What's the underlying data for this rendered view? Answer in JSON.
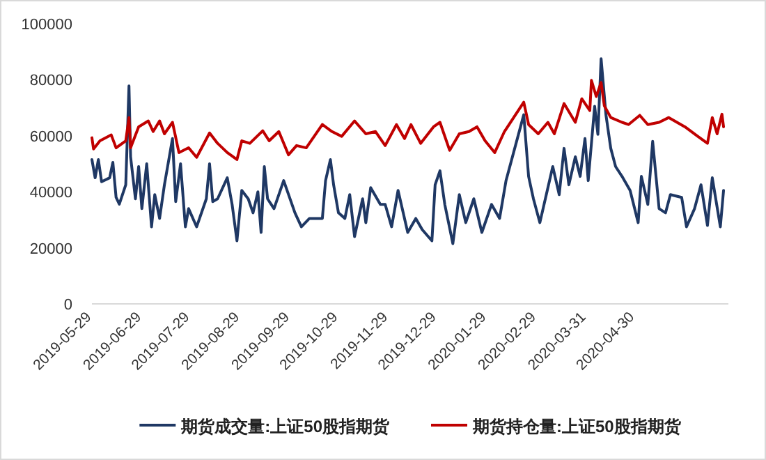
{
  "chart_data": {
    "type": "line",
    "legend": "bottom",
    "grid": false,
    "xlim": [
      "2019-05-29",
      "2020-06-27"
    ],
    "xticks": [
      "2019-05-29",
      "2019-06-29",
      "2019-07-29",
      "2019-08-29",
      "2019-09-29",
      "2019-10-29",
      "2019-11-29",
      "2019-12-29",
      "2020-01-29",
      "2020-02-29",
      "2020-03-31",
      "2020-04-30"
    ],
    "ylim": [
      0,
      100000
    ],
    "yticks": [
      0,
      20000,
      40000,
      60000,
      80000,
      100000
    ],
    "series": [
      {
        "name": "期货成交量:上证50股指期货",
        "color": "#1f3864",
        "x": [
          "2019-05-29",
          "2019-05-31",
          "2019-06-02",
          "2019-06-04",
          "2019-06-09",
          "2019-06-11",
          "2019-06-13",
          "2019-06-15",
          "2019-06-19",
          "2019-06-21",
          "2019-06-22",
          "2019-06-25",
          "2019-06-27",
          "2019-06-29",
          "2019-07-02",
          "2019-07-05",
          "2019-07-07",
          "2019-07-10",
          "2019-07-13",
          "2019-07-18",
          "2019-07-20",
          "2019-07-23",
          "2019-07-26",
          "2019-07-28",
          "2019-08-02",
          "2019-08-08",
          "2019-08-10",
          "2019-08-12",
          "2019-08-15",
          "2019-08-21",
          "2019-08-24",
          "2019-08-27",
          "2019-08-30",
          "2019-09-03",
          "2019-09-06",
          "2019-09-09",
          "2019-09-11",
          "2019-09-13",
          "2019-09-15",
          "2019-09-19",
          "2019-09-25",
          "2019-10-02",
          "2019-10-06",
          "2019-10-11",
          "2019-10-19",
          "2019-10-21",
          "2019-10-24",
          "2019-10-26",
          "2019-10-29",
          "2019-11-02",
          "2019-11-05",
          "2019-11-08",
          "2019-11-13",
          "2019-11-15",
          "2019-11-18",
          "2019-11-24",
          "2019-11-27",
          "2019-12-01",
          "2019-12-05",
          "2019-12-11",
          "2019-12-16",
          "2019-12-20",
          "2019-12-26",
          "2019-12-28",
          "2019-12-31",
          "2020-01-03",
          "2020-01-08",
          "2020-01-12",
          "2020-01-16",
          "2020-01-21",
          "2020-01-26",
          "2020-02-01",
          "2020-02-06",
          "2020-02-10",
          "2020-02-21",
          "2020-02-24",
          "2020-02-27",
          "2020-03-02",
          "2020-03-06",
          "2020-03-10",
          "2020-03-14",
          "2020-03-17",
          "2020-03-20",
          "2020-03-24",
          "2020-03-27",
          "2020-03-30",
          "2020-04-01",
          "2020-04-05",
          "2020-04-07",
          "2020-04-09",
          "2020-04-12",
          "2020-04-15",
          "2020-04-18",
          "2020-04-22",
          "2020-04-27",
          "2020-05-02",
          "2020-05-04",
          "2020-05-08",
          "2020-05-11",
          "2020-05-15",
          "2020-05-19",
          "2020-05-22",
          "2020-05-29",
          "2020-06-01",
          "2020-06-06",
          "2020-06-10",
          "2020-06-14",
          "2020-06-17",
          "2020-06-22",
          "2020-06-24"
        ],
        "values": [
          51500,
          45000,
          51500,
          43600,
          45000,
          50500,
          38000,
          35600,
          42500,
          77800,
          52500,
          37500,
          49000,
          34000,
          50000,
          27500,
          39000,
          30500,
          42500,
          59000,
          36500,
          50000,
          27500,
          34000,
          27500,
          37500,
          50000,
          36500,
          37500,
          45000,
          35500,
          22500,
          40500,
          37500,
          32500,
          40000,
          25500,
          49000,
          37500,
          34000,
          44000,
          32500,
          27500,
          30500,
          30500,
          44000,
          51500,
          42500,
          32500,
          30500,
          39000,
          24000,
          37500,
          29000,
          41500,
          35500,
          35500,
          27500,
          40500,
          25500,
          30500,
          26500,
          22500,
          42500,
          47500,
          35500,
          21500,
          39000,
          29000,
          37500,
          25500,
          35500,
          30500,
          44000,
          67500,
          45500,
          37500,
          29000,
          39000,
          49000,
          39000,
          55500,
          42500,
          52500,
          45500,
          59000,
          44000,
          70500,
          60500,
          87500,
          67500,
          55500,
          49000,
          45500,
          40500,
          29000,
          45500,
          35500,
          58000,
          34000,
          32500,
          39000,
          38000,
          27500,
          34000,
          42500,
          28000,
          45000,
          27500,
          40500
        ]
      },
      {
        "name": "期货持仓量:上证50股指期货",
        "color": "#c00000",
        "x": [
          "2019-05-29",
          "2019-05-30",
          "2019-06-03",
          "2019-06-10",
          "2019-06-13",
          "2019-06-19",
          "2019-06-21",
          "2019-06-22",
          "2019-06-27",
          "2019-07-03",
          "2019-07-06",
          "2019-07-10",
          "2019-07-13",
          "2019-07-18",
          "2019-07-22",
          "2019-07-28",
          "2019-08-02",
          "2019-08-10",
          "2019-08-15",
          "2019-08-21",
          "2019-08-27",
          "2019-08-30",
          "2019-09-04",
          "2019-09-12",
          "2019-09-16",
          "2019-09-22",
          "2019-09-28",
          "2019-10-03",
          "2019-10-09",
          "2019-10-19",
          "2019-10-25",
          "2019-10-31",
          "2019-11-08",
          "2019-11-15",
          "2019-11-21",
          "2019-11-27",
          "2019-12-04",
          "2019-12-09",
          "2019-12-13",
          "2019-12-19",
          "2019-12-27",
          "2019-12-31",
          "2020-01-06",
          "2020-01-12",
          "2020-01-18",
          "2020-01-23",
          "2020-01-28",
          "2020-02-03",
          "2020-02-09",
          "2020-02-21",
          "2020-02-24",
          "2020-03-01",
          "2020-03-07",
          "2020-03-11",
          "2020-03-17",
          "2020-03-24",
          "2020-03-28",
          "2020-04-02",
          "2020-04-03",
          "2020-04-06",
          "2020-04-09",
          "2020-04-11",
          "2020-04-15",
          "2020-04-22",
          "2020-04-26",
          "2020-05-03",
          "2020-05-08",
          "2020-05-15",
          "2020-05-21",
          "2020-05-31",
          "2020-06-08",
          "2020-06-14",
          "2020-06-17",
          "2020-06-20",
          "2020-06-23",
          "2020-06-24"
        ],
        "values": [
          59300,
          55300,
          58200,
          60300,
          55700,
          58200,
          66500,
          55700,
          63200,
          65300,
          61500,
          65300,
          60700,
          64800,
          54000,
          55700,
          52300,
          61000,
          57300,
          54000,
          51500,
          58200,
          57300,
          61800,
          58200,
          61500,
          53200,
          56500,
          55700,
          64000,
          61500,
          59800,
          65300,
          60700,
          61500,
          56500,
          64000,
          59000,
          64000,
          57300,
          63200,
          64800,
          54800,
          60700,
          61500,
          63200,
          58200,
          54000,
          61500,
          72000,
          64000,
          60700,
          64800,
          60700,
          71500,
          64800,
          73200,
          69000,
          79800,
          74000,
          79000,
          70700,
          66500,
          64800,
          64000,
          67300,
          64000,
          64800,
          66500,
          63200,
          59800,
          57300,
          66500,
          60700,
          67700,
          63200
        ]
      }
    ]
  }
}
